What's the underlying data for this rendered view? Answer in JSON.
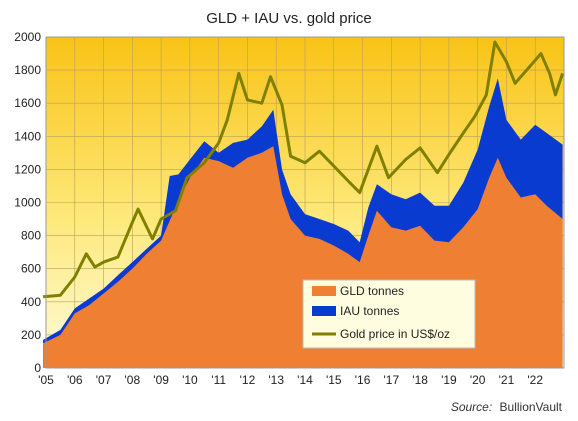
{
  "chart_data": {
    "type": "area",
    "title": "GLD + IAU vs. gold price",
    "xlabel": "",
    "ylabel": "",
    "ylim": [
      0,
      2000
    ],
    "yticks": [
      0,
      200,
      400,
      600,
      800,
      1000,
      1200,
      1400,
      1600,
      1800,
      2000
    ],
    "xlim": [
      2005,
      2023
    ],
    "xticks": [
      {
        "value": 2005,
        "label": "'05"
      },
      {
        "value": 2006,
        "label": "'06"
      },
      {
        "value": 2007,
        "label": "'07"
      },
      {
        "value": 2008,
        "label": "'08"
      },
      {
        "value": 2009,
        "label": "'09"
      },
      {
        "value": 2010,
        "label": "'10"
      },
      {
        "value": 2011,
        "label": "'11"
      },
      {
        "value": 2012,
        "label": "'12"
      },
      {
        "value": 2013,
        "label": "'13"
      },
      {
        "value": 2014,
        "label": "'14"
      },
      {
        "value": 2015,
        "label": "'15"
      },
      {
        "value": 2016,
        "label": "'16"
      },
      {
        "value": 2017,
        "label": "'17"
      },
      {
        "value": 2018,
        "label": "'18"
      },
      {
        "value": 2019,
        "label": "'19"
      },
      {
        "value": 2020,
        "label": "'20"
      },
      {
        "value": 2021,
        "label": "'21"
      },
      {
        "value": 2022,
        "label": "'22"
      }
    ],
    "grid": true,
    "legend_position": "bottom-right",
    "source": {
      "label": "Source:",
      "name": "BullionVault"
    },
    "series": [
      {
        "name": "GLD tonnes",
        "color": "#ee7f33",
        "kind": "area",
        "points": [
          [
            2004.9,
            150
          ],
          [
            2005.5,
            200
          ],
          [
            2006.0,
            330
          ],
          [
            2006.5,
            380
          ],
          [
            2007.0,
            450
          ],
          [
            2007.5,
            520
          ],
          [
            2008.0,
            600
          ],
          [
            2008.5,
            690
          ],
          [
            2009.0,
            770
          ],
          [
            2009.3,
            890
          ],
          [
            2009.6,
            1010
          ],
          [
            2010.0,
            1150
          ],
          [
            2010.5,
            1270
          ],
          [
            2011.0,
            1250
          ],
          [
            2011.5,
            1210
          ],
          [
            2012.0,
            1270
          ],
          [
            2012.5,
            1300
          ],
          [
            2012.9,
            1340
          ],
          [
            2013.2,
            1050
          ],
          [
            2013.5,
            900
          ],
          [
            2014.0,
            800
          ],
          [
            2014.5,
            780
          ],
          [
            2015.0,
            740
          ],
          [
            2015.5,
            690
          ],
          [
            2015.9,
            640
          ],
          [
            2016.2,
            800
          ],
          [
            2016.5,
            950
          ],
          [
            2017.0,
            850
          ],
          [
            2017.5,
            830
          ],
          [
            2018.0,
            860
          ],
          [
            2018.5,
            770
          ],
          [
            2019.0,
            760
          ],
          [
            2019.5,
            850
          ],
          [
            2020.0,
            960
          ],
          [
            2020.4,
            1150
          ],
          [
            2020.7,
            1270
          ],
          [
            2021.0,
            1150
          ],
          [
            2021.5,
            1030
          ],
          [
            2022.0,
            1050
          ],
          [
            2022.4,
            980
          ],
          [
            2022.95,
            900
          ]
        ]
      },
      {
        "name": "IAU tonnes",
        "color": "#0a3bd1",
        "kind": "area",
        "points": [
          [
            2004.9,
            170
          ],
          [
            2005.5,
            230
          ],
          [
            2006.0,
            360
          ],
          [
            2006.5,
            420
          ],
          [
            2007.0,
            480
          ],
          [
            2007.5,
            560
          ],
          [
            2008.0,
            640
          ],
          [
            2008.5,
            720
          ],
          [
            2009.0,
            800
          ],
          [
            2009.3,
            1160
          ],
          [
            2009.6,
            1170
          ],
          [
            2010.0,
            1260
          ],
          [
            2010.5,
            1370
          ],
          [
            2011.0,
            1300
          ],
          [
            2011.5,
            1360
          ],
          [
            2012.0,
            1380
          ],
          [
            2012.5,
            1460
          ],
          [
            2012.9,
            1560
          ],
          [
            2013.2,
            1200
          ],
          [
            2013.5,
            1050
          ],
          [
            2014.0,
            930
          ],
          [
            2014.5,
            900
          ],
          [
            2015.0,
            870
          ],
          [
            2015.5,
            830
          ],
          [
            2015.9,
            760
          ],
          [
            2016.2,
            970
          ],
          [
            2016.5,
            1110
          ],
          [
            2017.0,
            1050
          ],
          [
            2017.5,
            1020
          ],
          [
            2018.0,
            1060
          ],
          [
            2018.5,
            980
          ],
          [
            2019.0,
            980
          ],
          [
            2019.5,
            1120
          ],
          [
            2020.0,
            1320
          ],
          [
            2020.4,
            1580
          ],
          [
            2020.7,
            1750
          ],
          [
            2021.0,
            1500
          ],
          [
            2021.5,
            1380
          ],
          [
            2022.0,
            1470
          ],
          [
            2022.4,
            1420
          ],
          [
            2022.95,
            1350
          ]
        ]
      },
      {
        "name": "Gold price in US$/oz",
        "color": "#808000",
        "kind": "line",
        "points": [
          [
            2004.9,
            430
          ],
          [
            2005.5,
            440
          ],
          [
            2006.0,
            550
          ],
          [
            2006.4,
            690
          ],
          [
            2006.7,
            610
          ],
          [
            2007.0,
            640
          ],
          [
            2007.5,
            670
          ],
          [
            2008.0,
            880
          ],
          [
            2008.2,
            960
          ],
          [
            2008.7,
            780
          ],
          [
            2009.0,
            900
          ],
          [
            2009.5,
            950
          ],
          [
            2009.9,
            1150
          ],
          [
            2010.5,
            1240
          ],
          [
            2011.0,
            1360
          ],
          [
            2011.3,
            1500
          ],
          [
            2011.7,
            1780
          ],
          [
            2012.0,
            1620
          ],
          [
            2012.5,
            1600
          ],
          [
            2012.8,
            1760
          ],
          [
            2013.2,
            1590
          ],
          [
            2013.5,
            1280
          ],
          [
            2014.0,
            1240
          ],
          [
            2014.5,
            1310
          ],
          [
            2015.0,
            1220
          ],
          [
            2015.5,
            1130
          ],
          [
            2015.9,
            1060
          ],
          [
            2016.5,
            1340
          ],
          [
            2016.9,
            1150
          ],
          [
            2017.5,
            1260
          ],
          [
            2018.0,
            1330
          ],
          [
            2018.6,
            1180
          ],
          [
            2019.0,
            1290
          ],
          [
            2019.5,
            1420
          ],
          [
            2019.9,
            1520
          ],
          [
            2020.3,
            1650
          ],
          [
            2020.6,
            1970
          ],
          [
            2021.0,
            1850
          ],
          [
            2021.3,
            1720
          ],
          [
            2021.7,
            1800
          ],
          [
            2022.2,
            1900
          ],
          [
            2022.5,
            1780
          ],
          [
            2022.7,
            1650
          ],
          [
            2022.95,
            1780
          ]
        ]
      }
    ]
  }
}
